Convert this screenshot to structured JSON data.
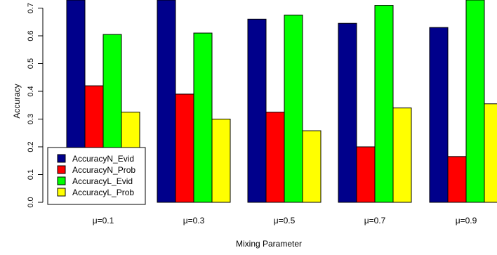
{
  "chart_data": {
    "type": "bar",
    "xlabel": "Mixing Parameter",
    "ylabel": "Accuracy",
    "categories": [
      "μ=0.1",
      "μ=0.3",
      "μ=0.5",
      "μ=0.7",
      "μ=0.9"
    ],
    "series": [
      {
        "name": "AccuracyN_Evid",
        "color": "#00008B",
        "values": [
          0.76,
          0.74,
          0.66,
          0.645,
          0.63
        ]
      },
      {
        "name": "AccuracyN_Prob",
        "color": "#FF0000",
        "values": [
          0.42,
          0.39,
          0.325,
          0.2,
          0.165
        ]
      },
      {
        "name": "AccuracyL_Evid",
        "color": "#00FF00",
        "values": [
          0.605,
          0.61,
          0.675,
          0.71,
          0.76
        ]
      },
      {
        "name": "AccuracyL_Prob",
        "color": "#FFFF00",
        "values": [
          0.325,
          0.3,
          0.258,
          0.34,
          0.355
        ]
      }
    ],
    "ylim": [
      0,
      0.74
    ],
    "yticks": [
      "0.0",
      "0.1",
      "0.2",
      "0.3",
      "0.4",
      "0.5",
      "0.6",
      "0.7"
    ],
    "legend_position": "bottom-left",
    "grid": false
  }
}
